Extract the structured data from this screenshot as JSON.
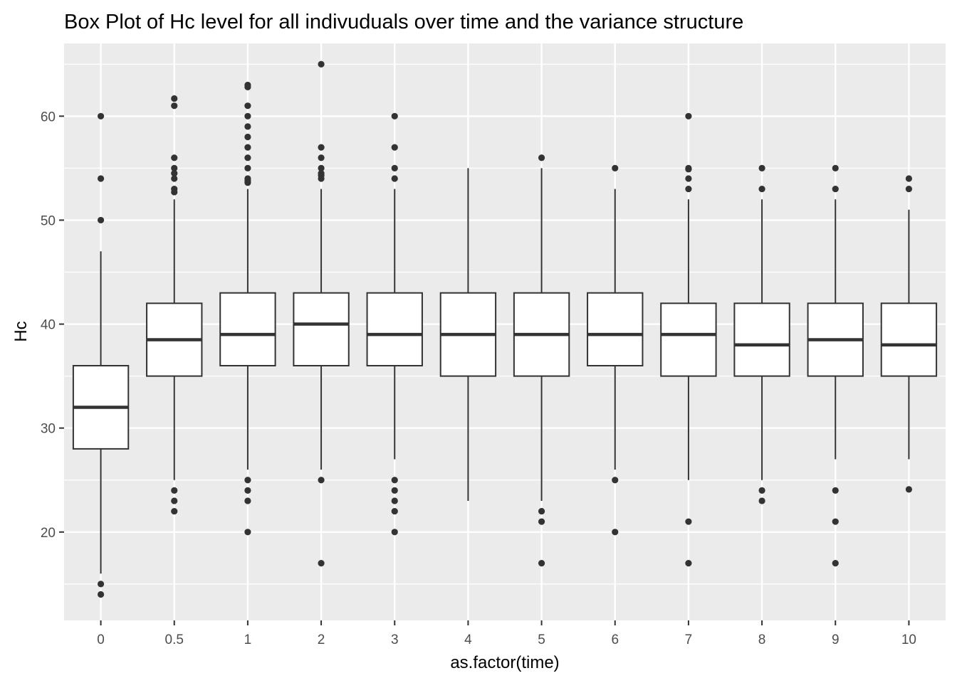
{
  "chart_data": {
    "type": "box",
    "title": "Box Plot of Hc level for all indivuduals over time and the variance structure",
    "xlabel": "as.factor(time)",
    "ylabel": "Hc",
    "categories": [
      "0",
      "0.5",
      "1",
      "2",
      "3",
      "4",
      "5",
      "6",
      "7",
      "8",
      "9",
      "10"
    ],
    "ylim": [
      11.5,
      67
    ],
    "yticks": [
      20,
      30,
      40,
      50,
      60
    ],
    "grid": true,
    "colors": {
      "panel": "#ebebeb",
      "grid_major": "#ffffff",
      "box_fill": "#ffffff",
      "box_stroke": "#333333",
      "outlier": "#333333"
    },
    "boxes": [
      {
        "x": "0",
        "q1": 28,
        "median": 32,
        "q3": 36,
        "whisker_low": 16,
        "whisker_high": 47,
        "outliers": [
          60,
          54,
          50,
          15,
          14
        ]
      },
      {
        "x": "0.5",
        "q1": 35,
        "median": 38.5,
        "q3": 42,
        "whisker_low": 25,
        "whisker_high": 52,
        "outliers": [
          61.7,
          61,
          56,
          55,
          54.5,
          54,
          53,
          52.7,
          24,
          23,
          22
        ]
      },
      {
        "x": "1",
        "q1": 36,
        "median": 39,
        "q3": 43,
        "whisker_low": 26,
        "whisker_high": 53,
        "outliers": [
          63,
          62.8,
          61,
          60,
          59,
          58,
          57,
          56,
          55,
          54,
          53.8,
          53.6,
          25,
          24,
          23,
          20
        ]
      },
      {
        "x": "2",
        "q1": 36,
        "median": 40,
        "q3": 43,
        "whisker_low": 26,
        "whisker_high": 53,
        "outliers": [
          65,
          57,
          56,
          55,
          54.5,
          54.3,
          54,
          25,
          17
        ]
      },
      {
        "x": "3",
        "q1": 36,
        "median": 39,
        "q3": 43,
        "whisker_low": 27,
        "whisker_high": 53,
        "outliers": [
          60,
          57,
          55,
          54,
          25,
          24,
          23,
          22,
          20
        ]
      },
      {
        "x": "4",
        "q1": 35,
        "median": 39,
        "q3": 43,
        "whisker_low": 23,
        "whisker_high": 55,
        "outliers": []
      },
      {
        "x": "5",
        "q1": 35,
        "median": 39,
        "q3": 43,
        "whisker_low": 23,
        "whisker_high": 55,
        "outliers": [
          56,
          22,
          21,
          17
        ]
      },
      {
        "x": "6",
        "q1": 36,
        "median": 39,
        "q3": 43,
        "whisker_low": 26,
        "whisker_high": 53,
        "outliers": [
          55,
          25,
          20
        ]
      },
      {
        "x": "7",
        "q1": 35,
        "median": 39,
        "q3": 42,
        "whisker_low": 25,
        "whisker_high": 52,
        "outliers": [
          60,
          55,
          54.9,
          54,
          53,
          21,
          17
        ]
      },
      {
        "x": "8",
        "q1": 35,
        "median": 38,
        "q3": 42,
        "whisker_low": 25,
        "whisker_high": 52,
        "outliers": [
          55,
          53,
          24,
          23
        ]
      },
      {
        "x": "9",
        "q1": 35,
        "median": 38.5,
        "q3": 42,
        "whisker_low": 27,
        "whisker_high": 52,
        "outliers": [
          55,
          53,
          24,
          21,
          17
        ]
      },
      {
        "x": "10",
        "q1": 35,
        "median": 38,
        "q3": 42,
        "whisker_low": 27,
        "whisker_high": 51,
        "outliers": [
          54,
          53,
          24.1
        ]
      }
    ]
  }
}
